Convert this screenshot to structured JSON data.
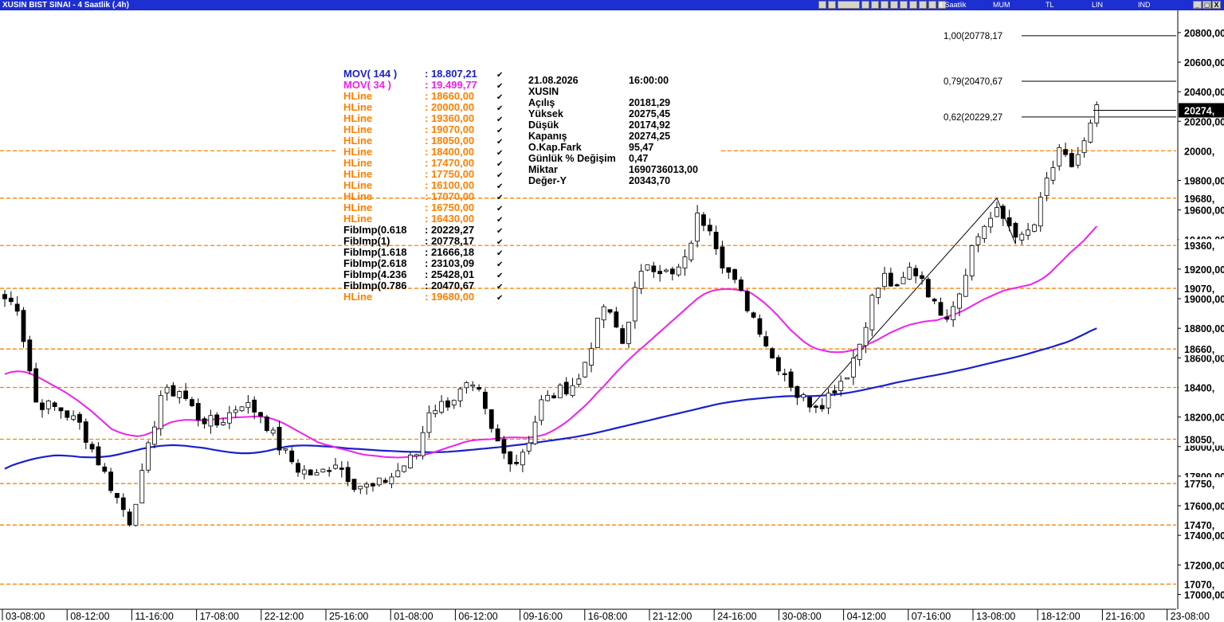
{
  "window": {
    "title": "XUSIN BIST SINAI - 4 Saatlik (.4h)",
    "menu": [
      "4 Saatlik",
      "MUM",
      "TL",
      "LIN",
      "IND"
    ],
    "close_label": "X",
    "min_label": "_",
    "restore_label": "◻"
  },
  "colors": {
    "mov144": "#1a21c9",
    "mov34": "#ee22ee",
    "hline": "#ff8000",
    "up_candle": "#ffffff",
    "down_candle": "#000000",
    "fib_line": "#000000"
  },
  "legend": [
    {
      "label": "MOV( 144 )",
      "value": ": 18.807,21",
      "color": "#1a21c9"
    },
    {
      "label": "MOV( 34 )",
      "value": ": 19.499,77",
      "color": "#ee22ee"
    },
    {
      "label": "HLine",
      "value": ": 18660,00",
      "color": "#ff8000"
    },
    {
      "label": "HLine",
      "value": ": 20000,00",
      "color": "#ff8000"
    },
    {
      "label": "HLine",
      "value": ": 19360,00",
      "color": "#ff8000"
    },
    {
      "label": "HLine",
      "value": ": 19070,00",
      "color": "#ff8000"
    },
    {
      "label": "HLine",
      "value": ": 18050,00",
      "color": "#ff8000"
    },
    {
      "label": "HLine",
      "value": ": 18400,00",
      "color": "#ff8000"
    },
    {
      "label": "HLine",
      "value": ": 17470,00",
      "color": "#ff8000"
    },
    {
      "label": "HLine",
      "value": ": 17750,00",
      "color": "#ff8000"
    },
    {
      "label": "HLine",
      "value": ": 16100,00",
      "color": "#ff8000"
    },
    {
      "label": "HLine",
      "value": ": 17070,00",
      "color": "#ff8000"
    },
    {
      "label": "HLine",
      "value": ": 16750,00",
      "color": "#ff8000"
    },
    {
      "label": "HLine",
      "value": ": 16430,00",
      "color": "#ff8000"
    },
    {
      "label": "FibImp(0.618",
      "value": ": 20229,27",
      "color": "#000000"
    },
    {
      "label": "FibImp(1)",
      "value": ": 20778,17",
      "color": "#000000"
    },
    {
      "label": "FibImp(1.618",
      "value": ": 21666,18",
      "color": "#000000"
    },
    {
      "label": "FibImp(2.618",
      "value": ": 23103,09",
      "color": "#000000"
    },
    {
      "label": "FibImp(4.236",
      "value": ": 25428,01",
      "color": "#000000"
    },
    {
      "label": "FibImp(0.786",
      "value": ": 20470,67",
      "color": "#000000"
    },
    {
      "label": "HLine",
      "value": ": 19680,00",
      "color": "#ff8000"
    }
  ],
  "info_panel": {
    "date": "21.08.2026",
    "time": "16:00:00",
    "symbol": "XUSIN",
    "rows": [
      {
        "label": "Açılış",
        "value": "20181,29"
      },
      {
        "label": "Yüksek",
        "value": "20275,45"
      },
      {
        "label": "Düşük",
        "value": "20174,92"
      },
      {
        "label": "Kapanış",
        "value": "20274,25"
      },
      {
        "label": "O.Kap.Fark",
        "value": "95,47"
      },
      {
        "label": "Günlük % Değişim",
        "value": "0,47"
      },
      {
        "label": "Miktar",
        "value": "1690736013,00"
      },
      {
        "label": "Değer-Y",
        "value": "20343,70"
      }
    ]
  },
  "chart_data": {
    "type": "candlestick",
    "symbol": "XUSIN",
    "timeframe": "4 Saatlik",
    "ylim": [
      16900,
      20950
    ],
    "y_ticks": [
      {
        "v": 20800,
        "label": "20800,00"
      },
      {
        "v": 20600,
        "label": "20600,00"
      },
      {
        "v": 20400,
        "label": "20400,00"
      },
      {
        "v": 20200,
        "label": "20200,00"
      },
      {
        "v": 19800,
        "label": "19800,00"
      },
      {
        "v": 19600,
        "label": "19600,00"
      },
      {
        "v": 19400,
        "label": "19400,00"
      },
      {
        "v": 19200,
        "label": "19200,00"
      },
      {
        "v": 19000,
        "label": "19000,00"
      },
      {
        "v": 18800,
        "label": "18800,00"
      },
      {
        "v": 18600,
        "label": "18600,00"
      },
      {
        "v": 18400,
        "label": "18400,00"
      },
      {
        "v": 18200,
        "label": "18200,00"
      },
      {
        "v": 18000,
        "label": "18000,00"
      },
      {
        "v": 17800,
        "label": "17800,00"
      },
      {
        "v": 17600,
        "label": "17600,00"
      },
      {
        "v": 17400,
        "label": "17400,00"
      },
      {
        "v": 17200,
        "label": "17200,00"
      },
      {
        "v": 17000,
        "label": "17000,00"
      }
    ],
    "x_labels": [
      "03-08:00",
      "08-12:00",
      "11-16:00",
      "17-08:00",
      "22-12:00",
      "25-16:00",
      "01-08:00",
      "06-12:00",
      "09-16:00",
      "16-08:00",
      "21-12:00",
      "24-16:00",
      "30-08:00",
      "04-12:00",
      "07-16:00",
      "13-08:00",
      "18-12:00",
      "21-16:00",
      "23-08:00"
    ],
    "hlines": [
      {
        "value": 20000,
        "label": "20000,"
      },
      {
        "value": 19680,
        "label": "19680,"
      },
      {
        "value": 19360,
        "label": "19360,"
      },
      {
        "value": 19070,
        "label": "19070,"
      },
      {
        "value": 18660,
        "label": "18660,"
      },
      {
        "value": 18400,
        "label": "18400,"
      },
      {
        "value": 18050,
        "label": "18050,"
      },
      {
        "value": 17750,
        "label": "17750,"
      },
      {
        "value": 17470,
        "label": "17470,"
      },
      {
        "value": 17070,
        "label": "17070,"
      }
    ],
    "fib_levels": [
      {
        "ratio": "1,00",
        "value": 20778.17,
        "label": "1,00(20778,17"
      },
      {
        "ratio": "0,79",
        "value": 20470.67,
        "label": "0,79(20470,67"
      },
      {
        "ratio": "0,62",
        "value": 20229.27,
        "label": "0,62(20229,27"
      }
    ],
    "last_price": {
      "value": 20274.25,
      "label": "20274,"
    },
    "fib_anchors": [
      {
        "index": 129,
        "value": 18260
      },
      {
        "index": 159,
        "value": 19680
      },
      {
        "index": 162,
        "value": 19370
      }
    ],
    "mov144": [
      17850,
      17870,
      17885,
      17898,
      17910,
      17920,
      17928,
      17935,
      17940,
      17940,
      17938,
      17935,
      17930,
      17928,
      17927,
      17928,
      17932,
      17937,
      17945,
      17955,
      17965,
      17975,
      17985,
      17993,
      18000,
      18005,
      18008,
      18010,
      18008,
      18005,
      18000,
      17995,
      17990,
      17982,
      17975,
      17968,
      17962,
      17958,
      17955,
      17955,
      17958,
      17963,
      17970,
      17980,
      17990,
      17998,
      18004,
      18007,
      18008,
      18007,
      18005,
      18002,
      18000,
      17997,
      17992,
      17988,
      17985,
      17983,
      17980,
      17977,
      17974,
      17972,
      17970,
      17968,
      17966,
      17965,
      17964,
      17963,
      17962,
      17962,
      17963,
      17965,
      17968,
      17971,
      17975,
      17979,
      17983,
      17987,
      17991,
      17995,
      18000,
      18005,
      18010,
      18015,
      18020,
      18026,
      18032,
      18038,
      18044,
      18050,
      18056,
      18062,
      18070,
      18078,
      18086,
      18095,
      18105,
      18115,
      18125,
      18135,
      18145,
      18155,
      18165,
      18175,
      18185,
      18195,
      18205,
      18215,
      18225,
      18235,
      18245,
      18255,
      18265,
      18275,
      18285,
      18293,
      18300,
      18306,
      18312,
      18318,
      18322,
      18326,
      18330,
      18334,
      18337,
      18340,
      18341,
      18342,
      18342,
      18342,
      18343,
      18345,
      18348,
      18352,
      18357,
      18363,
      18370,
      18378,
      18387,
      18396,
      18405,
      18414,
      18424,
      18434,
      18442,
      18450,
      18458,
      18466,
      18474,
      18482,
      18490,
      18498,
      18507,
      18516,
      18525,
      18535,
      18545,
      18555,
      18565,
      18575,
      18585,
      18595,
      18605,
      18616,
      18627,
      18640,
      18652,
      18664,
      18676,
      18690,
      18703,
      18720,
      18740,
      18760,
      18782,
      18800
    ],
    "mov34": [
      18490,
      18505,
      18510,
      18505,
      18490,
      18470,
      18445,
      18420,
      18395,
      18370,
      18340,
      18310,
      18275,
      18240,
      18200,
      18160,
      18120,
      18100,
      18085,
      18075,
      18070,
      18078,
      18095,
      18120,
      18145,
      18165,
      18175,
      18180,
      18180,
      18178,
      18178,
      18182,
      18187,
      18192,
      18195,
      18198,
      18200,
      18202,
      18205,
      18200,
      18190,
      18175,
      18155,
      18130,
      18105,
      18080,
      18055,
      18030,
      18015,
      18005,
      17990,
      17980,
      17968,
      17955,
      17945,
      17940,
      17936,
      17930,
      17928,
      17926,
      17928,
      17932,
      17938,
      17945,
      17955,
      17970,
      17985,
      18000,
      18015,
      18030,
      18040,
      18045,
      18048,
      18050,
      18055,
      18060,
      18062,
      18062,
      18060,
      18062,
      18070,
      18080,
      18100,
      18125,
      18155,
      18190,
      18230,
      18270,
      18315,
      18365,
      18410,
      18460,
      18510,
      18555,
      18600,
      18640,
      18680,
      18720,
      18760,
      18800,
      18840,
      18880,
      18920,
      18960,
      19000,
      19030,
      19050,
      19060,
      19065,
      19065,
      19060,
      19055,
      19040,
      19010,
      18975,
      18935,
      18890,
      18840,
      18790,
      18750,
      18710,
      18680,
      18660,
      18650,
      18640,
      18638,
      18640,
      18648,
      18660,
      18680,
      18700,
      18720,
      18745,
      18770,
      18790,
      18810,
      18825,
      18835,
      18845,
      18850,
      18855,
      18870,
      18885,
      18900,
      18920,
      18945,
      18970,
      18995,
      19015,
      19035,
      19055,
      19065,
      19075,
      19085,
      19095,
      19115,
      19140,
      19175,
      19220,
      19265,
      19310,
      19350,
      19390,
      19440,
      19490
    ]
  }
}
